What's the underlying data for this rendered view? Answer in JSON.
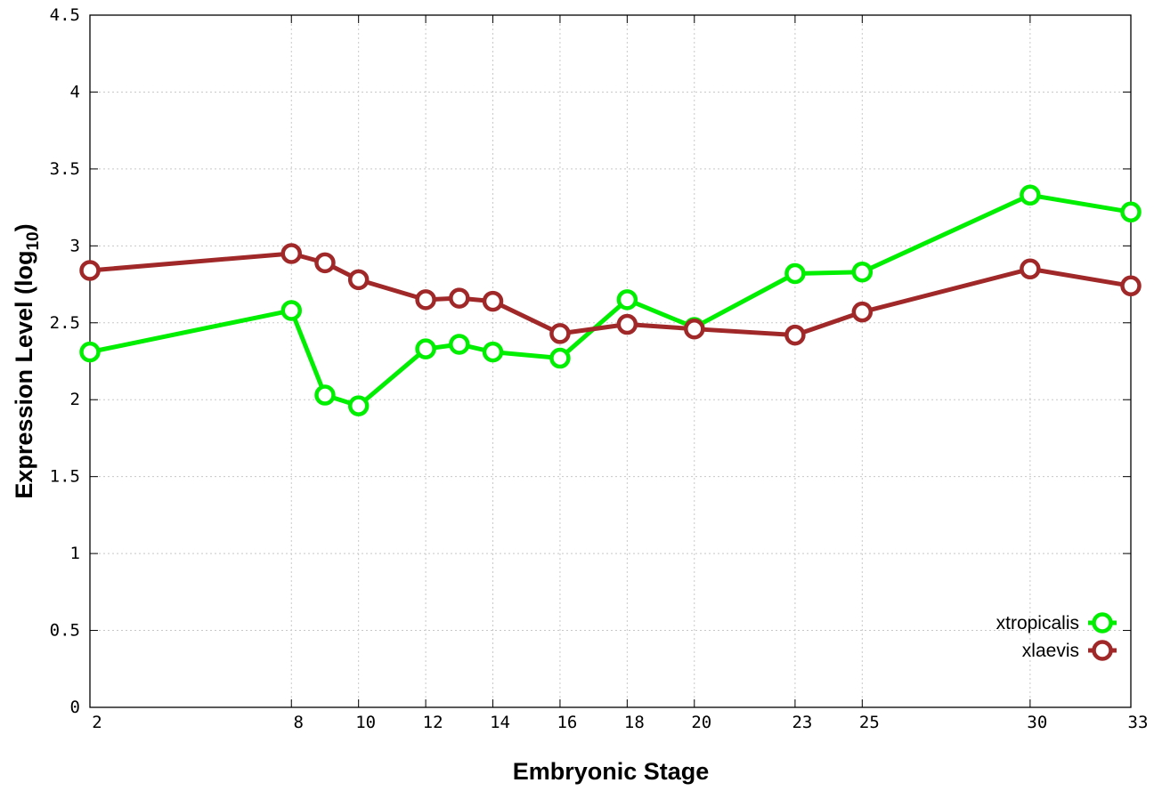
{
  "chart_data": {
    "type": "line",
    "xlabel": "Embryonic Stage",
    "ylabel_main": "Expression Level (log",
    "ylabel_sub": "10",
    "ylabel_close": ")",
    "x_ticks": [
      "2",
      "8",
      "10",
      "12",
      "14",
      "16",
      "18",
      "20",
      "23",
      "25",
      "30",
      "33"
    ],
    "y_ticks": [
      "0",
      "0.5",
      "1",
      "1.5",
      "2",
      "2.5",
      "3",
      "3.5",
      "4",
      "4.5"
    ],
    "xlim": [
      2,
      33
    ],
    "ylim": [
      0,
      4.5
    ],
    "grid": true,
    "legend_position": "bottom-right",
    "x": [
      2,
      8,
      9,
      10,
      12,
      13,
      14,
      16,
      18,
      20,
      23,
      25,
      30,
      33
    ],
    "series": [
      {
        "name": "xtropicalis",
        "color": "#00ee00",
        "values": [
          2.31,
          2.58,
          2.03,
          1.96,
          2.33,
          2.36,
          2.31,
          2.27,
          2.65,
          2.47,
          2.82,
          2.83,
          3.33,
          3.22
        ]
      },
      {
        "name": "xlaevis",
        "color": "#a02828",
        "values": [
          2.84,
          2.95,
          2.89,
          2.78,
          2.65,
          2.66,
          2.64,
          2.43,
          2.49,
          2.46,
          2.42,
          2.57,
          2.85,
          2.74
        ]
      }
    ]
  }
}
